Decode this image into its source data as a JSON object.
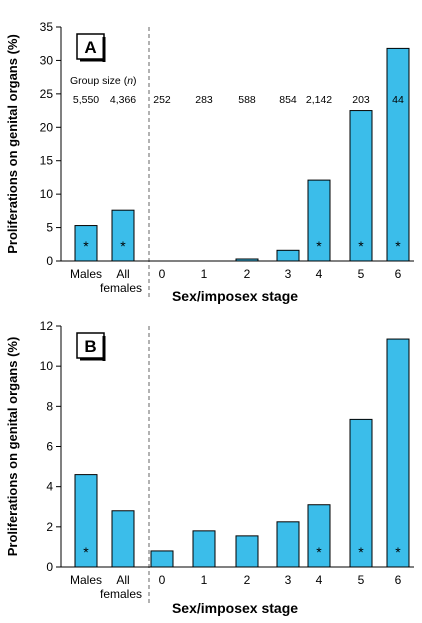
{
  "chart_data": [
    {
      "type": "bar",
      "panel": "A",
      "categories": [
        "Males",
        "All\nfemales",
        "0",
        "1",
        "2",
        "3",
        "4",
        "5",
        "6"
      ],
      "values": [
        5.3,
        7.6,
        0,
        0,
        0.3,
        1.6,
        12.1,
        22.5,
        31.8
      ],
      "significant": [
        true,
        true,
        false,
        false,
        false,
        false,
        true,
        true,
        true
      ],
      "group_size_label": "Group size (n)",
      "group_sizes": [
        "5,550",
        "4,366",
        "252",
        "283",
        "588",
        "854",
        "2,142",
        "203",
        "44"
      ],
      "ylabel": "Proliferations on genital organs (%)",
      "xlabel": "Sex/imposex stage",
      "ylim": [
        0,
        35
      ],
      "yticks": [
        0,
        5,
        10,
        15,
        20,
        25,
        30,
        35
      ],
      "grid": false,
      "bar_color": "#3bbdea"
    },
    {
      "type": "bar",
      "panel": "B",
      "categories": [
        "Males",
        "All\nfemales",
        "0",
        "1",
        "2",
        "3",
        "4",
        "5",
        "6"
      ],
      "values": [
        4.6,
        2.8,
        0.8,
        1.8,
        1.55,
        2.25,
        3.1,
        7.35,
        11.35
      ],
      "significant": [
        true,
        false,
        false,
        false,
        false,
        false,
        true,
        true,
        true
      ],
      "ylabel": "Proliferations on genital organs (%)",
      "xlabel": "Sex/imposex stage",
      "ylim": [
        0,
        12
      ],
      "yticks": [
        0,
        2,
        4,
        6,
        8,
        10,
        12
      ],
      "grid": false,
      "bar_color": "#3bbdea"
    }
  ]
}
